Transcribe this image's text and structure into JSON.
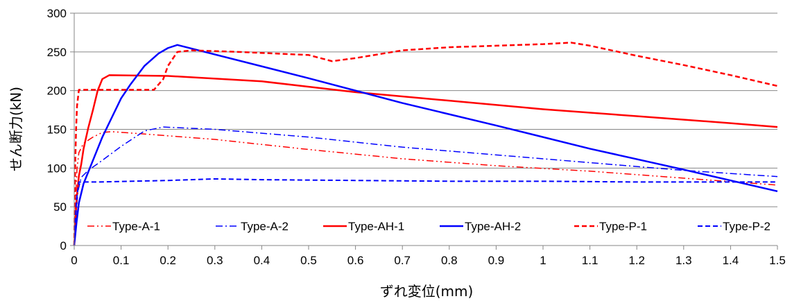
{
  "chart_data": {
    "type": "line",
    "title": "",
    "xlabel": "ずれ変位(mm)",
    "ylabel": "せん断力(kN)",
    "xlim": [
      0,
      1.5
    ],
    "ylim": [
      0,
      300
    ],
    "x_ticks": [
      0,
      0.1,
      0.2,
      0.3,
      0.4,
      0.5,
      0.6,
      0.7,
      0.8,
      0.9,
      1,
      1.1,
      1.2,
      1.3,
      1.4,
      1.5
    ],
    "y_ticks": [
      0,
      50,
      100,
      150,
      200,
      250,
      300
    ],
    "grid": "horizontal",
    "legend_position": "inside-bottom",
    "series": [
      {
        "name": "Type-A-1",
        "color": "#ff0000",
        "dash": "dash-dot-dot",
        "width": 1.5,
        "points": [
          [
            0,
            0
          ],
          [
            0.003,
            60
          ],
          [
            0.006,
            100
          ],
          [
            0.01,
            120
          ],
          [
            0.02,
            132
          ],
          [
            0.04,
            140
          ],
          [
            0.06,
            146
          ],
          [
            0.08,
            147
          ],
          [
            0.15,
            144
          ],
          [
            0.3,
            137
          ],
          [
            0.5,
            124
          ],
          [
            0.7,
            112
          ],
          [
            0.9,
            103
          ],
          [
            1.1,
            96
          ],
          [
            1.3,
            87
          ],
          [
            1.5,
            78
          ]
        ]
      },
      {
        "name": "Type-A-2",
        "color": "#0000ff",
        "dash": "dash-dot",
        "width": 1.5,
        "points": [
          [
            0,
            0
          ],
          [
            0.004,
            40
          ],
          [
            0.008,
            70
          ],
          [
            0.015,
            88
          ],
          [
            0.03,
            97
          ],
          [
            0.06,
            110
          ],
          [
            0.1,
            128
          ],
          [
            0.15,
            148
          ],
          [
            0.19,
            153
          ],
          [
            0.3,
            150
          ],
          [
            0.5,
            140
          ],
          [
            0.7,
            127
          ],
          [
            0.9,
            117
          ],
          [
            1.1,
            107
          ],
          [
            1.3,
            97
          ],
          [
            1.5,
            89
          ]
        ]
      },
      {
        "name": "Type-AH-1",
        "color": "#ff0000",
        "dash": "solid",
        "width": 2.5,
        "points": [
          [
            0,
            0
          ],
          [
            0.005,
            60
          ],
          [
            0.01,
            90
          ],
          [
            0.015,
            105
          ],
          [
            0.02,
            125
          ],
          [
            0.03,
            152
          ],
          [
            0.04,
            175
          ],
          [
            0.05,
            200
          ],
          [
            0.06,
            215
          ],
          [
            0.075,
            220
          ],
          [
            0.2,
            219
          ],
          [
            0.4,
            212
          ],
          [
            0.6,
            198
          ],
          [
            0.8,
            187
          ],
          [
            1.0,
            176
          ],
          [
            1.2,
            167
          ],
          [
            1.4,
            158
          ],
          [
            1.5,
            153
          ]
        ]
      },
      {
        "name": "Type-AH-2",
        "color": "#0000ff",
        "dash": "solid",
        "width": 2.5,
        "points": [
          [
            0,
            0
          ],
          [
            0.005,
            30
          ],
          [
            0.01,
            55
          ],
          [
            0.02,
            80
          ],
          [
            0.04,
            110
          ],
          [
            0.06,
            140
          ],
          [
            0.08,
            165
          ],
          [
            0.1,
            190
          ],
          [
            0.12,
            208
          ],
          [
            0.15,
            232
          ],
          [
            0.18,
            248
          ],
          [
            0.2,
            255
          ],
          [
            0.22,
            259
          ],
          [
            0.5,
            216
          ],
          [
            0.7,
            184
          ],
          [
            0.9,
            155
          ],
          [
            1.1,
            125
          ],
          [
            1.3,
            98
          ],
          [
            1.5,
            70
          ]
        ]
      },
      {
        "name": "Type-P-1",
        "color": "#ff0000",
        "dash": "dash",
        "width": 2.5,
        "points": [
          [
            0,
            0
          ],
          [
            0.002,
            100
          ],
          [
            0.004,
            150
          ],
          [
            0.006,
            180
          ],
          [
            0.01,
            201
          ],
          [
            0.1,
            201
          ],
          [
            0.17,
            201
          ],
          [
            0.19,
            215
          ],
          [
            0.2,
            232
          ],
          [
            0.22,
            250
          ],
          [
            0.25,
            252
          ],
          [
            0.35,
            250
          ],
          [
            0.5,
            246
          ],
          [
            0.55,
            238
          ],
          [
            0.6,
            242
          ],
          [
            0.7,
            252
          ],
          [
            0.8,
            256
          ],
          [
            0.9,
            258
          ],
          [
            1.0,
            260
          ],
          [
            1.06,
            262
          ],
          [
            1.1,
            258
          ],
          [
            1.2,
            245
          ],
          [
            1.3,
            233
          ],
          [
            1.4,
            220
          ],
          [
            1.5,
            206
          ]
        ]
      },
      {
        "name": "Type-P-2",
        "color": "#0000ff",
        "dash": "dash",
        "width": 2,
        "points": [
          [
            0,
            0
          ],
          [
            0.005,
            60
          ],
          [
            0.01,
            82
          ],
          [
            0.05,
            82
          ],
          [
            0.2,
            84
          ],
          [
            0.3,
            86
          ],
          [
            0.4,
            85
          ],
          [
            0.6,
            84
          ],
          [
            0.8,
            83
          ],
          [
            1.0,
            83
          ],
          [
            1.2,
            82
          ],
          [
            1.3,
            82
          ],
          [
            1.4,
            82
          ],
          [
            1.5,
            82
          ]
        ]
      }
    ]
  }
}
